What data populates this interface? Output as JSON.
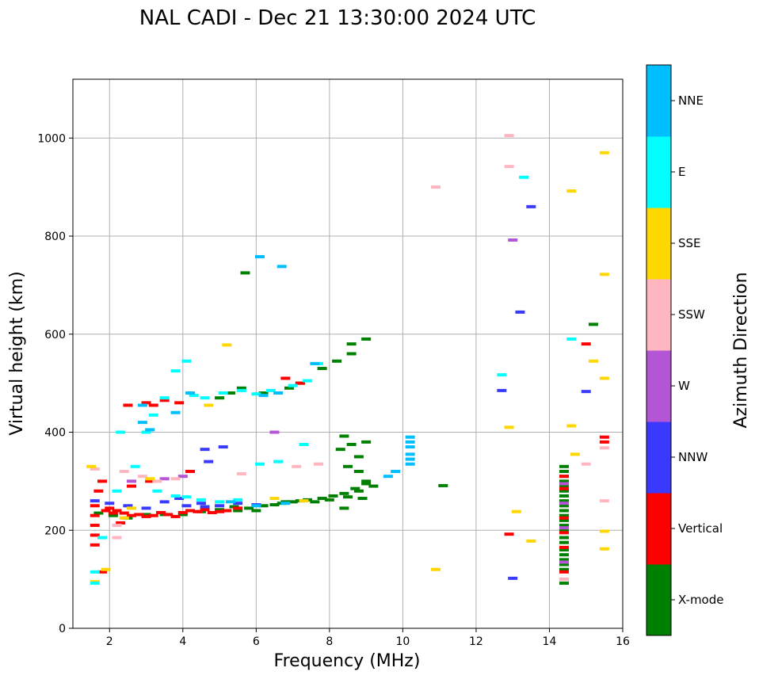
{
  "chart_data": {
    "type": "scatter",
    "title": "NAL CADI - Dec 21 13:30:00 2024 UTC",
    "xlabel": "Frequency (MHz)",
    "ylabel": "Virtual height (km)",
    "xlim": [
      1,
      16
    ],
    "ylim": [
      0,
      1120
    ],
    "xticks": [
      "2",
      "4",
      "6",
      "8",
      "10",
      "12",
      "14",
      "16"
    ],
    "yticks": [
      "0",
      "200",
      "400",
      "600",
      "800",
      "1000"
    ],
    "grid": true,
    "colorbar": {
      "title": "Azimuth Direction",
      "categories": [
        {
          "label": "X-mode",
          "color": "#008000"
        },
        {
          "label": "Vertical",
          "color": "#ff0000"
        },
        {
          "label": "NNW",
          "color": "#3a3aff"
        },
        {
          "label": "W",
          "color": "#b455d6"
        },
        {
          "label": "SSW",
          "color": "#ffb6c1"
        },
        {
          "label": "SSE",
          "color": "#ffd700"
        },
        {
          "label": "E",
          "color": "#00ffff"
        },
        {
          "label": "NNE",
          "color": "#00bfff"
        }
      ]
    },
    "series": [
      {
        "name": "X-mode",
        "points": [
          [
            8.2,
            545
          ],
          [
            8.6,
            580
          ],
          [
            9.0,
            590
          ],
          [
            8.6,
            560
          ],
          [
            7.8,
            530
          ],
          [
            7.2,
            500
          ],
          [
            6.9,
            490
          ],
          [
            6.2,
            480
          ],
          [
            5.6,
            490
          ],
          [
            5.3,
            480
          ],
          [
            5.0,
            470
          ],
          [
            6.7,
            255
          ],
          [
            7.0,
            258
          ],
          [
            7.4,
            262
          ],
          [
            7.8,
            265
          ],
          [
            8.1,
            270
          ],
          [
            8.4,
            275
          ],
          [
            8.7,
            285
          ],
          [
            9.0,
            295
          ],
          [
            9.2,
            290
          ],
          [
            8.9,
            265
          ],
          [
            8.5,
            268
          ],
          [
            6.2,
            250
          ],
          [
            5.8,
            245
          ],
          [
            5.4,
            248
          ],
          [
            6.5,
            252
          ],
          [
            6.8,
            258
          ],
          [
            7.2,
            260
          ],
          [
            7.6,
            258
          ],
          [
            8.0,
            262
          ],
          [
            8.4,
            245
          ],
          [
            8.8,
            280
          ],
          [
            9.0,
            300
          ],
          [
            8.8,
            350
          ],
          [
            8.6,
            375
          ],
          [
            8.4,
            392
          ],
          [
            8.5,
            330
          ],
          [
            8.8,
            320
          ],
          [
            8.3,
            365
          ],
          [
            9.0,
            380
          ],
          [
            11.1,
            291
          ],
          [
            14.4,
            330
          ],
          [
            14.4,
            320
          ],
          [
            14.4,
            310
          ],
          [
            14.4,
            300
          ],
          [
            14.4,
            290
          ],
          [
            14.4,
            280
          ],
          [
            14.4,
            270
          ],
          [
            14.4,
            260
          ],
          [
            14.4,
            250
          ],
          [
            14.4,
            240
          ],
          [
            14.4,
            230
          ],
          [
            14.4,
            220
          ],
          [
            14.4,
            210
          ],
          [
            14.4,
            200
          ],
          [
            14.4,
            185
          ],
          [
            14.4,
            175
          ],
          [
            14.4,
            160
          ],
          [
            14.4,
            150
          ],
          [
            14.4,
            140
          ],
          [
            14.4,
            130
          ],
          [
            14.4,
            120
          ],
          [
            14.4,
            100
          ],
          [
            14.4,
            92
          ],
          [
            15.2,
            620
          ],
          [
            5.7,
            725
          ],
          [
            1.7,
            235
          ],
          [
            2.1,
            230
          ],
          [
            2.5,
            225
          ],
          [
            3.0,
            232
          ],
          [
            3.5,
            232
          ],
          [
            4.0,
            232
          ],
          [
            4.5,
            238
          ],
          [
            5.0,
            242
          ],
          [
            5.5,
            240
          ],
          [
            6.0,
            240
          ]
        ]
      },
      {
        "name": "Vertical",
        "points": [
          [
            1.6,
            250
          ],
          [
            1.6,
            230
          ],
          [
            1.6,
            210
          ],
          [
            1.6,
            190
          ],
          [
            1.6,
            170
          ],
          [
            1.7,
            280
          ],
          [
            1.8,
            300
          ],
          [
            1.8,
            115
          ],
          [
            2.0,
            245
          ],
          [
            2.2,
            240
          ],
          [
            2.4,
            235
          ],
          [
            2.6,
            230
          ],
          [
            2.8,
            232
          ],
          [
            3.0,
            228
          ],
          [
            3.2,
            230
          ],
          [
            3.4,
            236
          ],
          [
            3.6,
            232
          ],
          [
            3.8,
            228
          ],
          [
            4.0,
            236
          ],
          [
            4.2,
            240
          ],
          [
            4.4,
            238
          ],
          [
            4.6,
            242
          ],
          [
            4.8,
            236
          ],
          [
            5.0,
            238
          ],
          [
            5.2,
            240
          ],
          [
            5.5,
            245
          ],
          [
            3.0,
            460
          ],
          [
            3.2,
            455
          ],
          [
            3.5,
            465
          ],
          [
            3.9,
            460
          ],
          [
            2.5,
            455
          ],
          [
            6.8,
            510
          ],
          [
            7.2,
            500
          ],
          [
            3.1,
            300
          ],
          [
            2.6,
            290
          ],
          [
            4.2,
            320
          ],
          [
            2.1,
            235
          ],
          [
            2.3,
            215
          ],
          [
            1.9,
            240
          ],
          [
            12.9,
            192
          ],
          [
            15.0,
            580
          ],
          [
            15.5,
            390
          ],
          [
            15.5,
            380
          ],
          [
            14.4,
            225
          ],
          [
            14.4,
            195
          ],
          [
            14.4,
            165
          ],
          [
            14.4,
            115
          ],
          [
            14.4,
            310
          ],
          [
            14.4,
            285
          ]
        ]
      },
      {
        "name": "NNW",
        "points": [
          [
            12.7,
            485
          ],
          [
            13.0,
            102
          ],
          [
            13.5,
            860
          ],
          [
            13.2,
            645
          ],
          [
            15.0,
            483
          ],
          [
            1.6,
            260
          ],
          [
            2.0,
            255
          ],
          [
            2.5,
            250
          ],
          [
            3.0,
            245
          ],
          [
            3.5,
            258
          ],
          [
            4.1,
            250
          ],
          [
            4.6,
            248
          ],
          [
            5.0,
            250
          ],
          [
            5.5,
            255
          ],
          [
            6.0,
            252
          ],
          [
            4.5,
            255
          ],
          [
            3.9,
            265
          ],
          [
            5.1,
            370
          ],
          [
            4.6,
            365
          ],
          [
            4.7,
            340
          ]
        ]
      },
      {
        "name": "W",
        "points": [
          [
            13.0,
            792
          ],
          [
            6.5,
            400
          ],
          [
            14.4,
            135
          ],
          [
            14.4,
            205
          ],
          [
            14.4,
            255
          ],
          [
            14.4,
            295
          ],
          [
            3.5,
            305
          ],
          [
            4.0,
            310
          ],
          [
            2.6,
            300
          ]
        ]
      },
      {
        "name": "SSW",
        "points": [
          [
            12.9,
            1005
          ],
          [
            12.9,
            942
          ],
          [
            10.9,
            900
          ],
          [
            15.0,
            335
          ],
          [
            15.5,
            260
          ],
          [
            15.5,
            368
          ],
          [
            14.4,
            100
          ],
          [
            1.6,
            325
          ],
          [
            2.4,
            320
          ],
          [
            2.9,
            310
          ],
          [
            3.3,
            300
          ],
          [
            3.8,
            305
          ],
          [
            2.2,
            210
          ],
          [
            2.2,
            185
          ],
          [
            7.1,
            330
          ],
          [
            7.7,
            335
          ],
          [
            5.6,
            315
          ]
        ]
      },
      {
        "name": "SSE",
        "points": [
          [
            15.5,
            970
          ],
          [
            14.6,
            892
          ],
          [
            15.5,
            722
          ],
          [
            15.2,
            545
          ],
          [
            15.5,
            510
          ],
          [
            14.6,
            413
          ],
          [
            14.7,
            355
          ],
          [
            13.1,
            238
          ],
          [
            13.5,
            178
          ],
          [
            15.5,
            198
          ],
          [
            15.5,
            162
          ],
          [
            12.9,
            410
          ],
          [
            10.9,
            120
          ],
          [
            1.5,
            330
          ],
          [
            1.6,
            95
          ],
          [
            2.4,
            225
          ],
          [
            2.6,
            245
          ],
          [
            3.1,
            305
          ],
          [
            4.7,
            455
          ],
          [
            5.2,
            578
          ],
          [
            6.5,
            265
          ],
          [
            7.3,
            260
          ],
          [
            1.9,
            120
          ]
        ]
      },
      {
        "name": "E",
        "points": [
          [
            12.7,
            517
          ],
          [
            13.3,
            920
          ],
          [
            14.6,
            590
          ],
          [
            3.0,
            400
          ],
          [
            3.2,
            435
          ],
          [
            3.5,
            470
          ],
          [
            3.8,
            525
          ],
          [
            4.1,
            545
          ],
          [
            4.3,
            475
          ],
          [
            4.6,
            470
          ],
          [
            5.1,
            480
          ],
          [
            5.6,
            485
          ],
          [
            6.0,
            478
          ],
          [
            6.4,
            485
          ],
          [
            7.0,
            495
          ],
          [
            7.4,
            505
          ],
          [
            7.7,
            540
          ],
          [
            2.3,
            400
          ],
          [
            2.7,
            330
          ],
          [
            3.3,
            280
          ],
          [
            3.8,
            270
          ],
          [
            4.1,
            268
          ],
          [
            4.5,
            262
          ],
          [
            5.0,
            258
          ],
          [
            5.5,
            262
          ],
          [
            1.6,
            115
          ],
          [
            1.6,
            92
          ],
          [
            1.8,
            185
          ],
          [
            2.2,
            280
          ],
          [
            6.1,
            335
          ],
          [
            6.6,
            340
          ],
          [
            7.3,
            375
          ]
        ]
      },
      {
        "name": "NNE",
        "points": [
          [
            10.2,
            390
          ],
          [
            10.2,
            380
          ],
          [
            10.2,
            370
          ],
          [
            10.2,
            355
          ],
          [
            10.2,
            345
          ],
          [
            10.2,
            335
          ],
          [
            9.8,
            320
          ],
          [
            9.6,
            310
          ],
          [
            6.1,
            758
          ],
          [
            6.7,
            738
          ],
          [
            6.6,
            480
          ],
          [
            6.2,
            475
          ],
          [
            3.8,
            440
          ],
          [
            2.9,
            420
          ],
          [
            3.1,
            405
          ],
          [
            2.9,
            455
          ],
          [
            4.2,
            480
          ],
          [
            7.6,
            540
          ],
          [
            5.3,
            258
          ],
          [
            6.0,
            250
          ],
          [
            6.8,
            255
          ]
        ]
      }
    ]
  }
}
